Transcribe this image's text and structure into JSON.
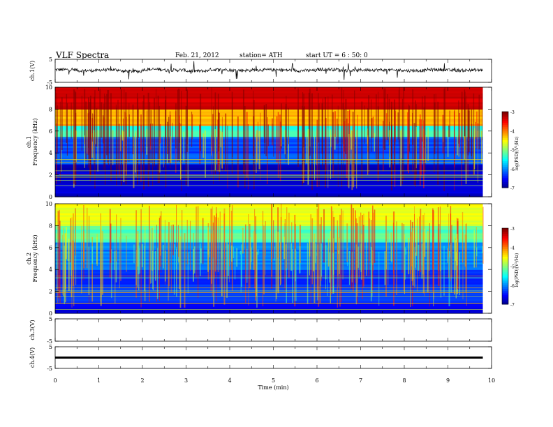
{
  "header": {
    "title": "VLF Spectra",
    "date": "Feb. 21, 2012",
    "station": "station= ATH",
    "start": "start UT = 6 : 50: 0"
  },
  "chart_data": [
    {
      "id": "ch1-waveform",
      "type": "line",
      "ylabel": "ch.1(V)",
      "ylim": [
        -5,
        5
      ],
      "yticks": [
        "5",
        "-5"
      ],
      "x": [
        0,
        0.5,
        1,
        1.5,
        2,
        2.5,
        3,
        3.5,
        4,
        4.5,
        5,
        5.5,
        6,
        6.5,
        7,
        7.5,
        8,
        8.5,
        9,
        9.5,
        9.8
      ],
      "values": [
        0.5,
        0.1,
        0.4,
        -0.2,
        0.6,
        0.3,
        -0.1,
        0.5,
        0.2,
        0.4,
        0.3,
        0.1,
        0.6,
        0.2,
        0.4,
        0.3,
        0.1,
        0.5,
        0.2,
        0.3,
        0.2
      ]
    },
    {
      "id": "ch1-spectrogram",
      "type": "heatmap",
      "ylabel": "ch.1\nFrequency (kHz)",
      "ylim": [
        0,
        10
      ],
      "yticks": [
        "0",
        "2",
        "4",
        "6",
        "8",
        "10"
      ],
      "colorbar": {
        "label": "log(PSD)(V²/Hz)",
        "range": [
          -7,
          -3
        ],
        "ticks": [
          "-3",
          "-4",
          "-5",
          "-6",
          "-7"
        ]
      },
      "band_levels": [
        {
          "freq_khz": [
            8,
            10
          ],
          "log_psd": -3.3
        },
        {
          "freq_khz": [
            6.5,
            8
          ],
          "log_psd": -4.2
        },
        {
          "freq_khz": [
            5.5,
            6.5
          ],
          "log_psd": -5.3
        },
        {
          "freq_khz": [
            3,
            5.5
          ],
          "log_psd": -6.2
        },
        {
          "freq_khz": [
            0,
            3
          ],
          "log_psd": -6.7
        }
      ]
    },
    {
      "id": "ch2-spectrogram",
      "type": "heatmap",
      "ylabel": "ch.2\nFrequency (kHz)",
      "ylim": [
        0,
        10
      ],
      "yticks": [
        "0",
        "2",
        "4",
        "6",
        "8",
        "10"
      ],
      "colorbar": {
        "label": "log(PSD)(V²/Hz)",
        "range": [
          -7,
          -3
        ],
        "ticks": [
          "-3",
          "-4",
          "-5",
          "-6",
          "-7"
        ]
      },
      "band_levels": [
        {
          "freq_khz": [
            8,
            10
          ],
          "log_psd": -4.6
        },
        {
          "freq_khz": [
            6.5,
            8
          ],
          "log_psd": -5.2
        },
        {
          "freq_khz": [
            4,
            6.5
          ],
          "log_psd": -6.0
        },
        {
          "freq_khz": [
            1,
            4
          ],
          "log_psd": -6.3
        },
        {
          "freq_khz": [
            0,
            1
          ],
          "log_psd": -6.6
        }
      ]
    },
    {
      "id": "ch3-waveform",
      "type": "line",
      "ylabel": "ch.3(V)",
      "ylim": [
        -5,
        5
      ],
      "yticks": [
        "5",
        "-5"
      ],
      "x": [],
      "values": []
    },
    {
      "id": "ch4-waveform",
      "type": "line",
      "ylabel": "ch.4(V)",
      "ylim": [
        -5,
        5
      ],
      "yticks": [
        "5",
        "-5"
      ],
      "x": [
        0,
        9.8
      ],
      "values": [
        0,
        0
      ]
    }
  ],
  "xaxis": {
    "label": "Time (min)",
    "xlim": [
      0,
      10
    ],
    "ticks": [
      "0",
      "1",
      "2",
      "3",
      "4",
      "5",
      "6",
      "7",
      "8",
      "9",
      "10"
    ]
  },
  "palette": {
    "ink": "#000000",
    "jet": [
      "#00007f",
      "#0000ff",
      "#007fff",
      "#00ffff",
      "#7fff7f",
      "#ffff00",
      "#ff7f00",
      "#ff0000",
      "#7f0000"
    ]
  }
}
